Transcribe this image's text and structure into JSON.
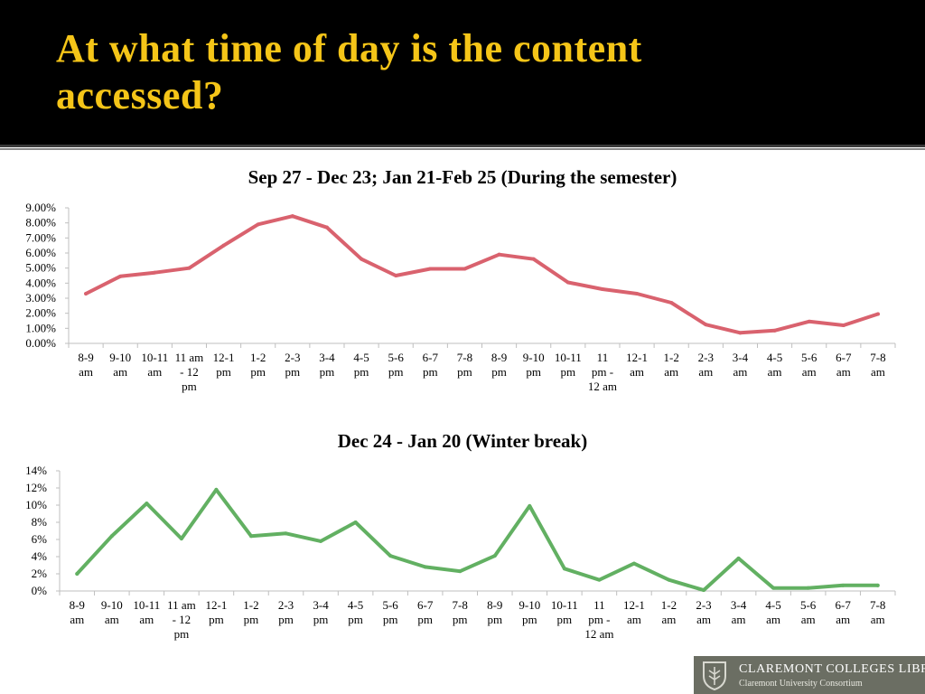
{
  "slide": {
    "title_line1": "At what time of day is the content",
    "title_line2": "accessed?",
    "title_color": "#f5c518",
    "header_bg": "#000000"
  },
  "categories": [
    [
      "8-9",
      "am"
    ],
    [
      "9-10",
      "am"
    ],
    [
      "10-11",
      "am"
    ],
    [
      "11 am",
      "- 12",
      "pm"
    ],
    [
      "12-1",
      "pm"
    ],
    [
      "1-2",
      "pm"
    ],
    [
      "2-3",
      "pm"
    ],
    [
      "3-4",
      "pm"
    ],
    [
      "4-5",
      "pm"
    ],
    [
      "5-6",
      "pm"
    ],
    [
      "6-7",
      "pm"
    ],
    [
      "7-8",
      "pm"
    ],
    [
      "8-9",
      "pm"
    ],
    [
      "9-10",
      "pm"
    ],
    [
      "10-11",
      "pm"
    ],
    [
      "11",
      "pm -",
      "12 am"
    ],
    [
      "12-1",
      "am"
    ],
    [
      "1-2",
      "am"
    ],
    [
      "2-3",
      "am"
    ],
    [
      "3-4",
      "am"
    ],
    [
      "4-5",
      "am"
    ],
    [
      "5-6",
      "am"
    ],
    [
      "6-7",
      "am"
    ],
    [
      "7-8",
      "am"
    ]
  ],
  "chart_data": [
    {
      "type": "line",
      "title": "Sep 27 - Dec 23; Jan 21-Feb 25 (During the semester)",
      "categories": [
        "8-9 am",
        "9-10 am",
        "10-11 am",
        "11 am - 12 pm",
        "12-1 pm",
        "1-2 pm",
        "2-3 pm",
        "3-4 pm",
        "4-5 pm",
        "5-6 pm",
        "6-7 pm",
        "7-8 pm",
        "8-9 pm",
        "9-10 pm",
        "10-11 pm",
        "11 pm - 12 am",
        "12-1 am",
        "1-2 am",
        "2-3 am",
        "3-4 am",
        "4-5 am",
        "5-6 am",
        "6-7 am",
        "7-8 am"
      ],
      "series": [
        {
          "values": [
            3.3,
            4.45,
            4.7,
            5.0,
            6.5,
            7.9,
            8.45,
            7.7,
            5.6,
            4.5,
            4.95,
            4.95,
            5.9,
            5.6,
            4.05,
            3.6,
            3.3,
            2.7,
            1.25,
            0.7,
            0.85,
            1.45,
            1.2,
            1.95
          ],
          "color": "#d9626e"
        }
      ],
      "ylim": [
        0,
        9
      ],
      "yticks": [
        "0.00%",
        "1.00%",
        "2.00%",
        "3.00%",
        "4.00%",
        "5.00%",
        "6.00%",
        "7.00%",
        "8.00%",
        "9.00%"
      ],
      "grid": false,
      "legend": "none"
    },
    {
      "type": "line",
      "title": "Dec 24 - Jan 20 (Winter break)",
      "categories": [
        "8-9 am",
        "9-10 am",
        "10-11 am",
        "11 am - 12 pm",
        "12-1 pm",
        "1-2 pm",
        "2-3 pm",
        "3-4 pm",
        "4-5 pm",
        "5-6 pm",
        "6-7 pm",
        "7-8 pm",
        "8-9 pm",
        "9-10 pm",
        "10-11 pm",
        "11 pm - 12 am",
        "12-1 am",
        "1-2 am",
        "2-3 am",
        "3-4 am",
        "4-5 am",
        "5-6 am",
        "6-7 am",
        "7-8 am"
      ],
      "series": [
        {
          "values": [
            2.0,
            6.4,
            10.2,
            6.1,
            11.8,
            6.4,
            6.7,
            5.8,
            8.0,
            4.1,
            2.8,
            2.3,
            4.1,
            9.9,
            2.6,
            1.3,
            3.2,
            1.3,
            0.1,
            3.8,
            0.35,
            0.35,
            0.65,
            0.65
          ],
          "color": "#62b062"
        }
      ],
      "ylim": [
        0,
        14
      ],
      "yticks": [
        "0%",
        "2%",
        "4%",
        "6%",
        "8%",
        "10%",
        "12%",
        "14%"
      ],
      "grid": false,
      "legend": "none"
    }
  ],
  "logo": {
    "line1": "CLAREMONT COLLEGES LIBRARY",
    "line2": "Claremont University Consortium",
    "bg": "#6b6e63"
  }
}
